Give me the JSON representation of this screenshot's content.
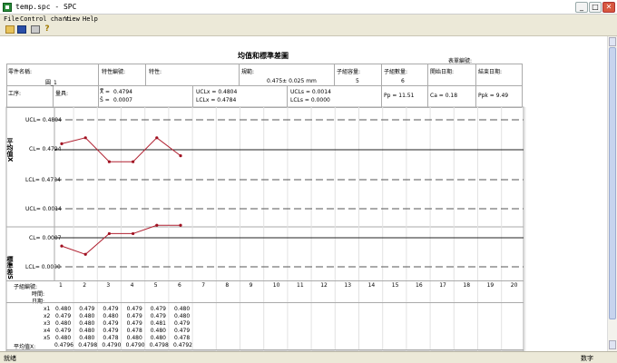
{
  "window": {
    "title": "temp.spc - SPC",
    "minimize": "_",
    "maximize": "□",
    "close": "✕"
  },
  "menu": [
    "File",
    "Control chart",
    "View",
    "Help"
  ],
  "toolbar": {
    "icons": [
      "open-folder-icon",
      "save-icon",
      "print-icon",
      "help-icon"
    ]
  },
  "status": {
    "left": "就绪",
    "right": "数字"
  },
  "report": {
    "title": "均值和標準差圖",
    "form_no_label": "表單編號:",
    "part_name_label": "零件名稱:",
    "part_name": "圓_1",
    "char_no_label": "特性編號:",
    "char_label": "特性:",
    "spec_label": "規範:",
    "spec": "0.475± 0.025 mm",
    "subgroup_size_label": "子組容量:",
    "subgroup_size": "5",
    "subgroup_count_label": "子組數量:",
    "subgroup_count": "6",
    "start_date_label": "開始日期:",
    "end_date_label": "結束日期:",
    "process_label": "工序:",
    "gauge_label": "量具:",
    "xbarbar": "0.4794",
    "sbar": "0.0007",
    "ucl_x": "UCLx = 0.4804",
    "lcl_x": "LCLx = 0.4784",
    "ucl_s": "UCLs = 0.0014",
    "lcl_s": "LCLs = 0.0000",
    "pp": "Pp = 11.51",
    "ca": "Ca = 0.18",
    "ppk": "Ppk = 9.49"
  },
  "chart_data": [
    {
      "type": "line",
      "ylabel": "平均值X",
      "ucl": 0.4804,
      "cl": 0.4794,
      "lcl": 0.4784,
      "ucl_label": "UCL= 0.4804",
      "cl_label": "CL= 0.4794",
      "lcl_label": "LCL= 0.4784",
      "x": [
        1,
        2,
        3,
        4,
        5,
        6
      ],
      "values": [
        0.4796,
        0.4798,
        0.479,
        0.479,
        0.4798,
        0.4792
      ],
      "point_color": "#a01020"
    },
    {
      "type": "line",
      "ylabel": "標準差S",
      "ucl": 0.0014,
      "cl": 0.0007,
      "lcl": 0.0,
      "ucl_label": "UCL= 0.0014",
      "cl_label": "CL= 0.0007",
      "lcl_label": "LCL= 0.0000",
      "x": [
        1,
        2,
        3,
        4,
        5,
        6
      ],
      "values": [
        0.0005,
        0.0003,
        0.0008,
        0.0008,
        0.001,
        0.001
      ],
      "point_color": "#a01020"
    }
  ],
  "table": {
    "subgroup_label": "子組編號:",
    "time_label": "時間:",
    "date_label": "日期:",
    "subgroups": [
      "1",
      "2",
      "3",
      "4",
      "5",
      "6",
      "7",
      "8",
      "9",
      "10",
      "11",
      "12",
      "13",
      "14",
      "15",
      "16",
      "17",
      "18",
      "19",
      "20"
    ],
    "row_labels": [
      "x1",
      "x2",
      "x3",
      "x4",
      "x5"
    ],
    "rows": [
      [
        "0.480",
        "0.479",
        "0.479",
        "0.479",
        "0.479",
        "0.480"
      ],
      [
        "0.479",
        "0.480",
        "0.480",
        "0.479",
        "0.479",
        "0.480"
      ],
      [
        "0.480",
        "0.480",
        "0.479",
        "0.479",
        "0.481",
        "0.479"
      ],
      [
        "0.479",
        "0.480",
        "0.479",
        "0.478",
        "0.480",
        "0.479"
      ],
      [
        "0.480",
        "0.480",
        "0.478",
        "0.480",
        "0.480",
        "0.478"
      ]
    ],
    "mean_label": "平均值X:",
    "means": [
      "0.4796",
      "0.4798",
      "0.4790",
      "0.4790",
      "0.4798",
      "0.4792"
    ]
  }
}
